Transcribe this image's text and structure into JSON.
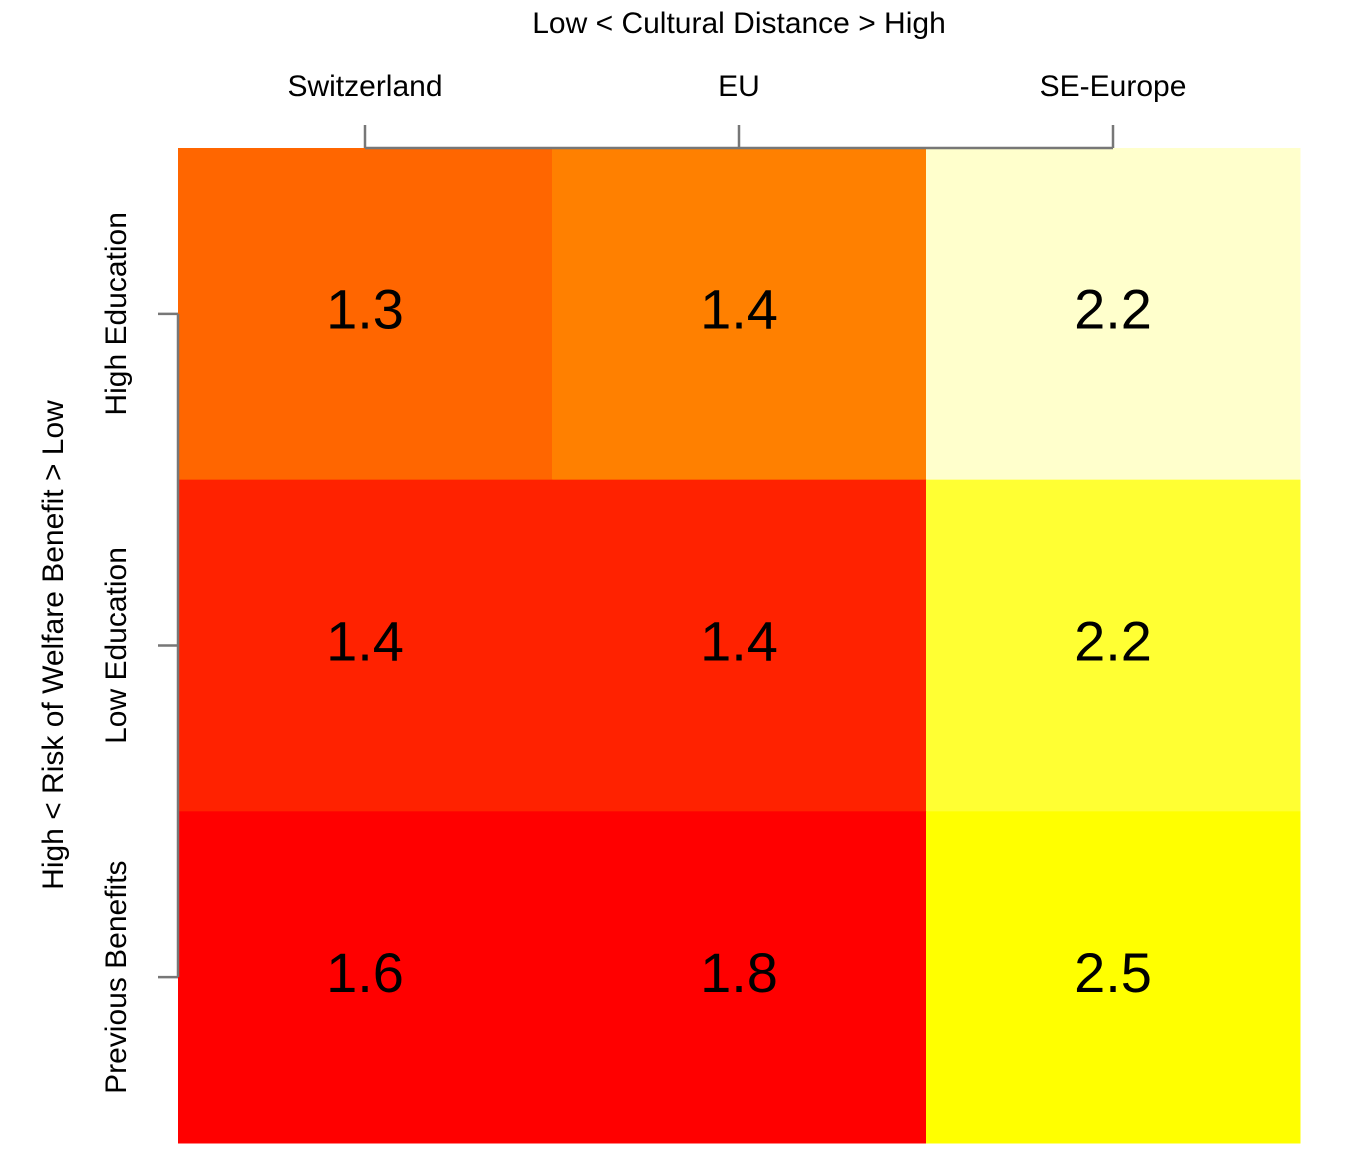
{
  "chart_data": {
    "type": "heatmap",
    "x_axis_label": "Low < Cultural Distance > High",
    "y_axis_label": "High < Risk of Welfare Benefit > Low",
    "x_categories": [
      "Switzerland",
      "EU",
      "SE-Europe"
    ],
    "y_categories": [
      "High Education",
      "Low Education",
      "Previous Benefits"
    ],
    "values": [
      [
        1.3,
        1.4,
        2.2
      ],
      [
        1.4,
        1.4,
        2.2
      ],
      [
        1.6,
        1.8,
        2.5
      ]
    ],
    "colors": [
      [
        "#ff6600",
        "#ff8000",
        "#ffffcc"
      ],
      [
        "#ff2200",
        "#ff2200",
        "#ffff33"
      ],
      [
        "#ff0000",
        "#ff0000",
        "#ffff00"
      ]
    ]
  }
}
